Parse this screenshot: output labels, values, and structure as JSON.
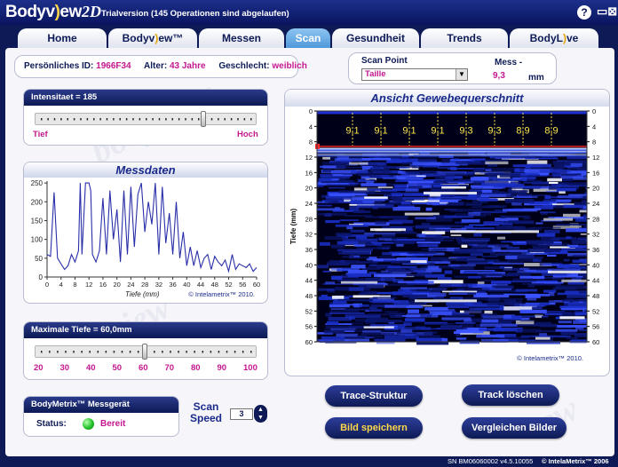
{
  "title": {
    "brand_main": "Bodyv",
    "brand_mid": ")",
    "brand_tail": "ew",
    "brand_suffix": "2D",
    "trial_text": "Trialversion (145 Operationen sind abgelaufen)",
    "help_label": "?",
    "window_icons": "▭⊠"
  },
  "tabs": [
    {
      "label": "Home"
    },
    {
      "label": "Bodyv)ew™"
    },
    {
      "label": "Messen"
    },
    {
      "label": "Scan"
    },
    {
      "label": "Gesundheit"
    },
    {
      "label": "Trends"
    },
    {
      "label": "BodyL)ve"
    }
  ],
  "info": {
    "id_label": "Persönliches ID:",
    "id_value": "1966F34",
    "age_label": "Alter:",
    "age_value": "43 Jahre",
    "gender_label": "Geschlecht:",
    "gender_value": "weiblich"
  },
  "scan_point": {
    "label": "Scan Point",
    "value": "Taille",
    "mess_label": "Mess -",
    "mess_value": "9,3",
    "mess_unit": "mm"
  },
  "intensity": {
    "label": "Intensitaet = 185",
    "low": "Tief",
    "high": "Hoch",
    "fraction": 0.78
  },
  "messdaten": {
    "title": "Messdaten",
    "xlabel": "Tiefe (mm)",
    "copyright": "© Intelametrix™ 2010."
  },
  "chart_data": {
    "type": "line",
    "title": "Messdaten",
    "xlabel": "Tiefe (mm)",
    "ylabel": "",
    "xlim": [
      0,
      60
    ],
    "ylim": [
      0,
      255
    ],
    "xticks": [
      0,
      4,
      8,
      12,
      16,
      20,
      24,
      28,
      32,
      36,
      40,
      44,
      48,
      52,
      56,
      60
    ],
    "yticks": [
      0,
      50,
      100,
      150,
      200,
      250
    ],
    "x": [
      0,
      1,
      2,
      3,
      4,
      5,
      6,
      7,
      8,
      9,
      9.5,
      10,
      11,
      12,
      12.5,
      13,
      14,
      15,
      16,
      17,
      18,
      19,
      20,
      21,
      22,
      23,
      24,
      25,
      26,
      27,
      28,
      29,
      30,
      31,
      32,
      33,
      34,
      35,
      36,
      37,
      38,
      39,
      40,
      41,
      42,
      43,
      44,
      45,
      46,
      47,
      48,
      49,
      50,
      51,
      52,
      53,
      54,
      55,
      56,
      57,
      58,
      59,
      60
    ],
    "y": [
      60,
      55,
      225,
      50,
      35,
      20,
      30,
      60,
      40,
      70,
      250,
      60,
      250,
      250,
      230,
      60,
      40,
      70,
      210,
      60,
      230,
      100,
      180,
      40,
      230,
      60,
      240,
      80,
      220,
      250,
      120,
      200,
      140,
      250,
      60,
      240,
      90,
      170,
      60,
      200,
      50,
      120,
      30,
      80,
      30,
      70,
      25,
      50,
      60,
      20,
      55,
      40,
      30,
      45,
      15,
      60,
      20,
      35,
      30,
      25,
      35,
      15,
      25
    ]
  },
  "cross_section": {
    "title": "Ansicht Gewebequerschnitt",
    "ylabel": "Tiefe (mm)",
    "yticks": [
      0,
      4,
      8,
      12,
      16,
      20,
      24,
      28,
      32,
      36,
      40,
      44,
      48,
      52,
      56,
      60
    ],
    "markers": [
      "9,1",
      "9,1",
      "9,1",
      "9,1",
      "9,3",
      "9,3",
      "8,9",
      "8,9"
    ],
    "copyright": "© Intelametrix™ 2010."
  },
  "max_depth": {
    "label": "Maximale Tiefe = 60,0mm",
    "ticks": [
      "20",
      "30",
      "40",
      "50",
      "60",
      "70",
      "80",
      "90",
      "100"
    ],
    "value_mm": 60
  },
  "device": {
    "title": "BodyMetrix™ Messgerät",
    "status_label": "Status:",
    "status_value": "Bereit",
    "status_color": "#22c22a"
  },
  "scan_speed": {
    "label_line1": "Scan",
    "label_line2": "Speed",
    "value": "3"
  },
  "buttons": {
    "trace": "Trace-Struktur",
    "track": "Track löschen",
    "save": "Bild speichern",
    "compare": "Vergleichen Bilder"
  },
  "footer": {
    "serial": "SN BM06060002 v4.5.10055",
    "copyright": "© IntelaMetrix™ 2006"
  },
  "colors": {
    "navy": "#0d1a55",
    "magenta": "#c4178f",
    "gold": "#ffd84a",
    "tab_active": "#4f98da"
  }
}
